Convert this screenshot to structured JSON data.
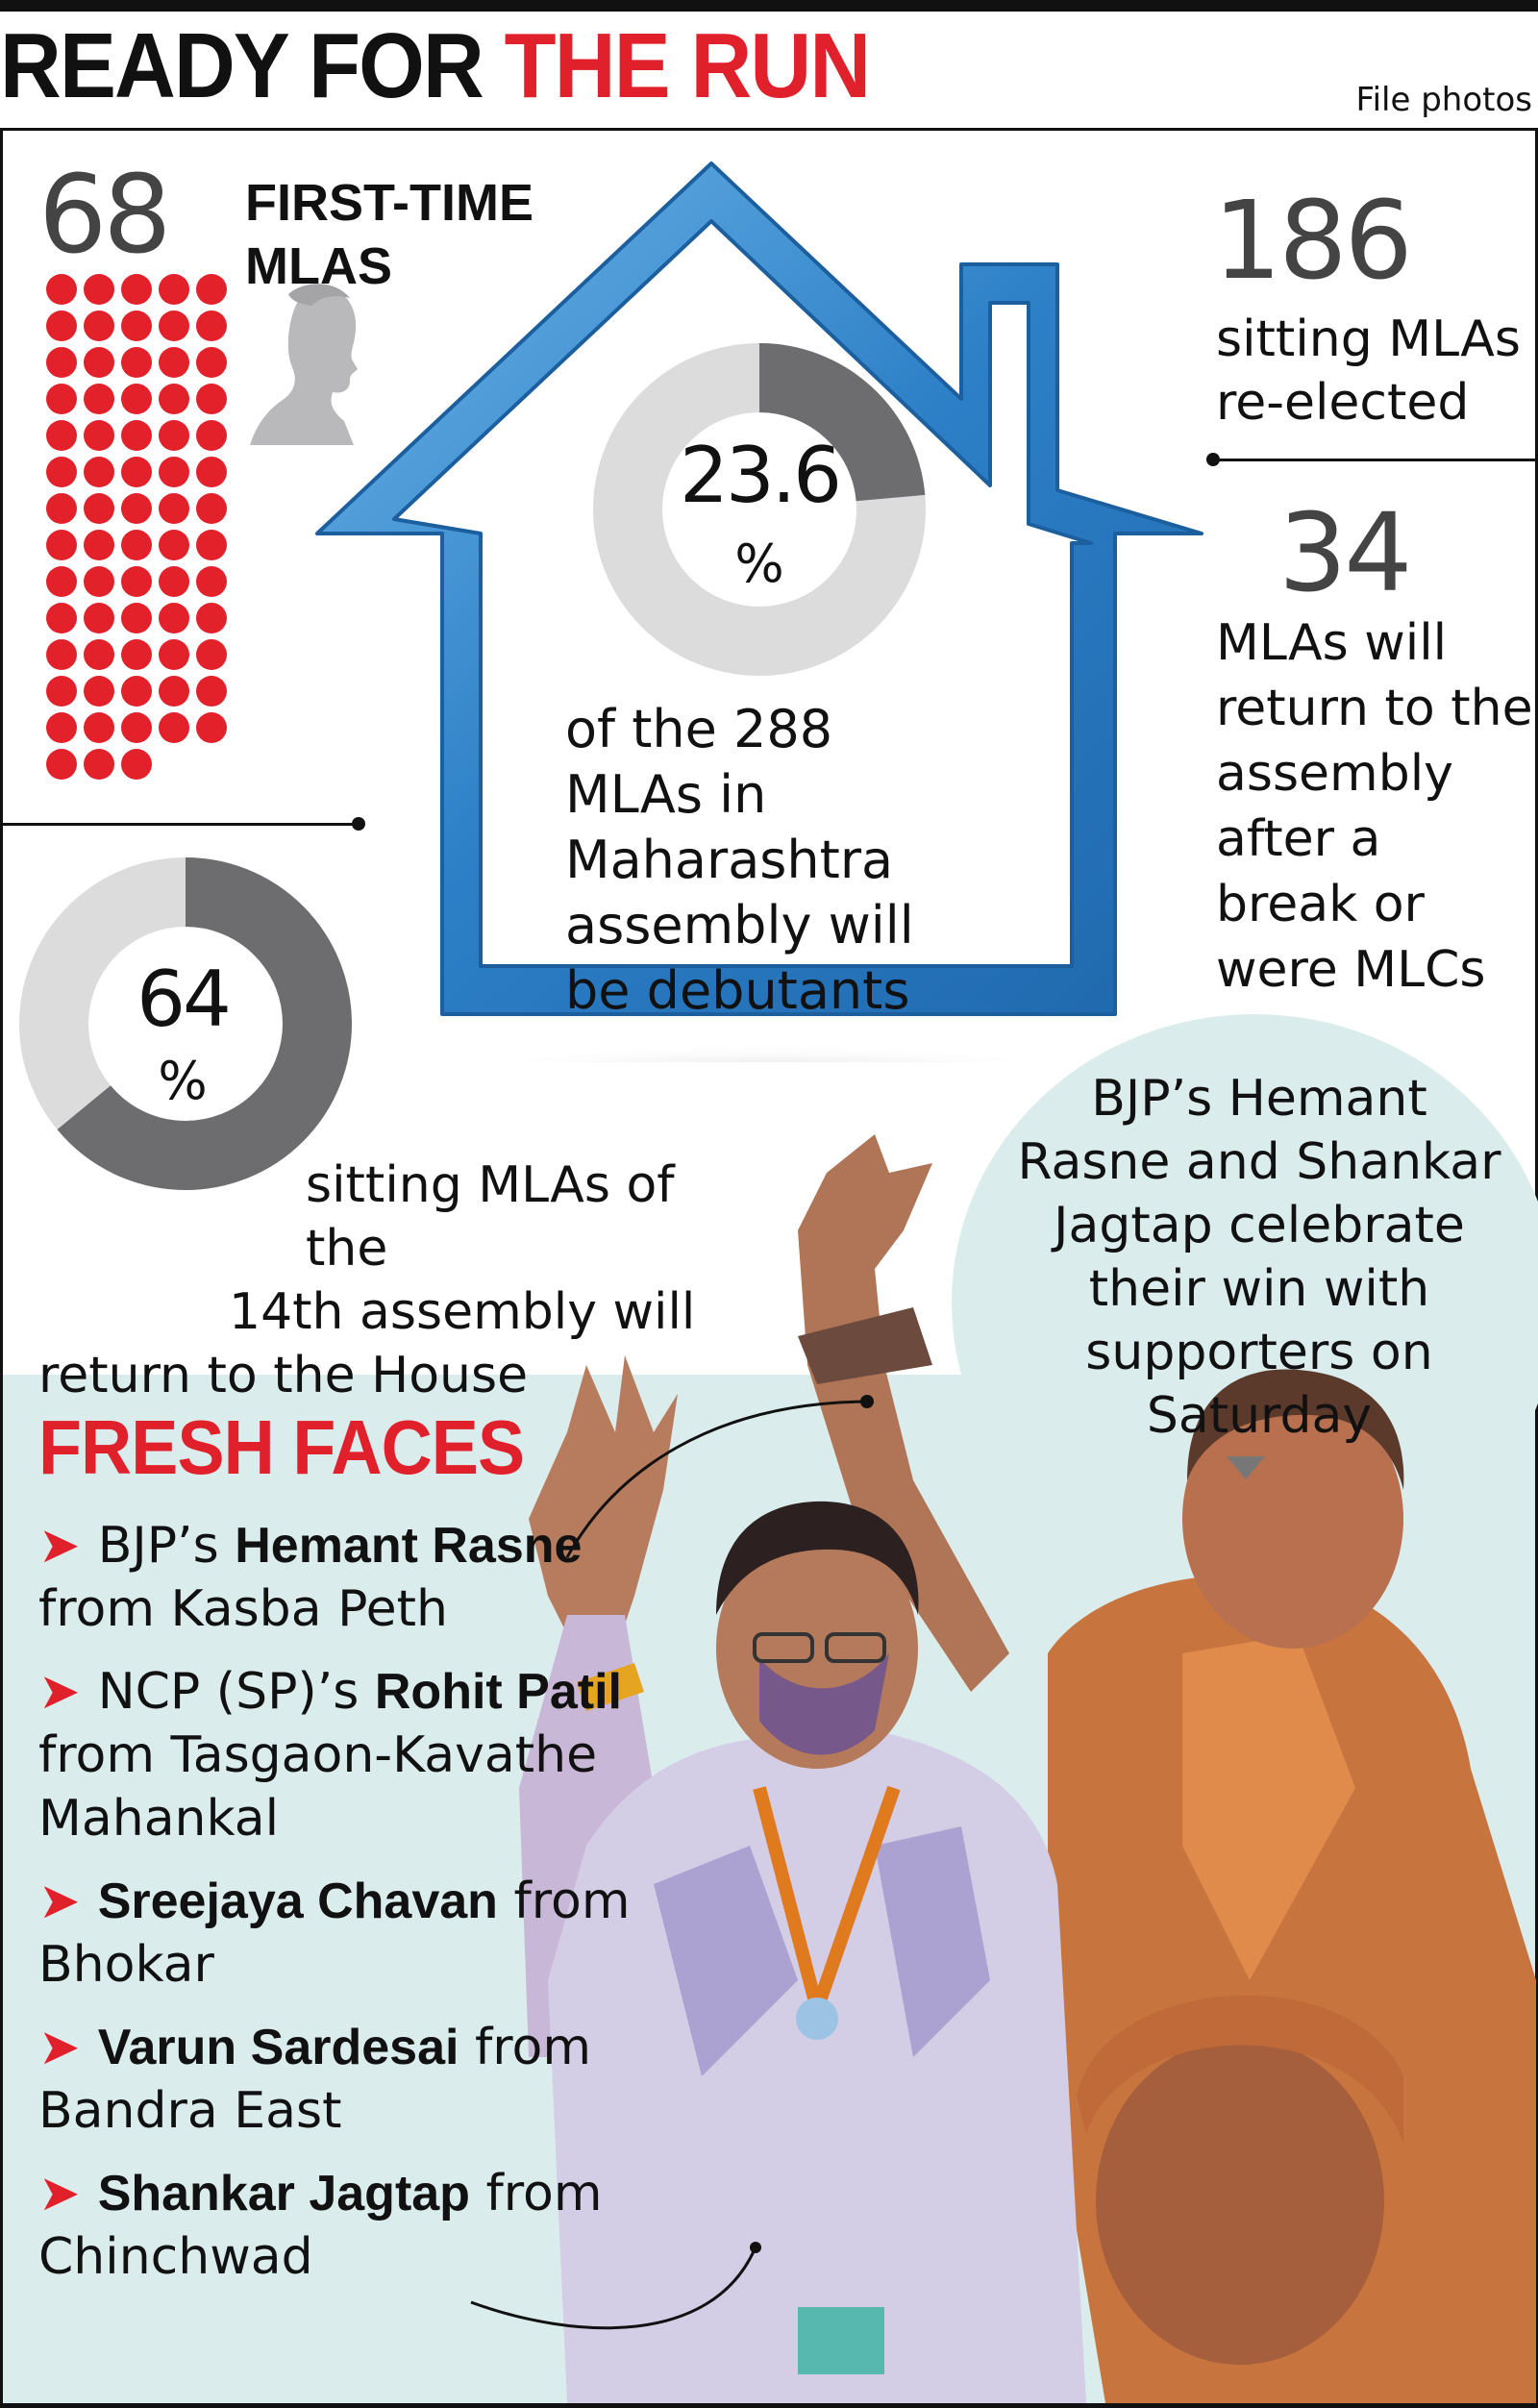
{
  "header": {
    "title_black": "READY FOR ",
    "title_red": "THE RUN",
    "credit": "File photos"
  },
  "first_time": {
    "count": "68",
    "label": "FIRST-TIME MLAS",
    "dot_color": "#e3212a"
  },
  "house_stat": {
    "percent": "23.6",
    "percent_sign": "%",
    "description": "of the 288 MLAs in Maharashtra assembly will be debutants",
    "fraction": 0.236,
    "ring_color": "#dcdcdc",
    "value_color": "#6d6d6f",
    "house_color": "#3a8fd2"
  },
  "reelected": {
    "count": "186",
    "label": "sitting MLAs re-elected"
  },
  "returning": {
    "count": "34",
    "label": "MLAs will return to the assembly after a break or were MLCs"
  },
  "sitting_stat": {
    "percent": "64",
    "percent_sign": "%",
    "line1": "sitting MLAs of the",
    "line2": "14th assembly will",
    "line3": "return to the House",
    "fraction": 0.64
  },
  "caption": {
    "text": "BJP’s Hemant Rasne and Shankar Jagtap celebrate their win with supporters on Saturday"
  },
  "fresh_faces": {
    "title": "FRESH FACES",
    "accent": "#e0202a",
    "items": [
      {
        "prefix": "BJP’s ",
        "name": "Hemant Rasne",
        "suffix": " from Kasba Peth"
      },
      {
        "prefix": "NCP (SP)’s ",
        "name": "Rohit Patil",
        "suffix": " from Tasgaon-Kavathe Mahankal"
      },
      {
        "prefix": "",
        "name": "Sreejaya Chavan",
        "suffix": " from Bhokar"
      },
      {
        "prefix": "",
        "name": "Varun Sardesai",
        "suffix": " from Bandra East"
      },
      {
        "prefix": "",
        "name": "Shankar Jagtap",
        "suffix": " from Chinchwad"
      }
    ]
  }
}
